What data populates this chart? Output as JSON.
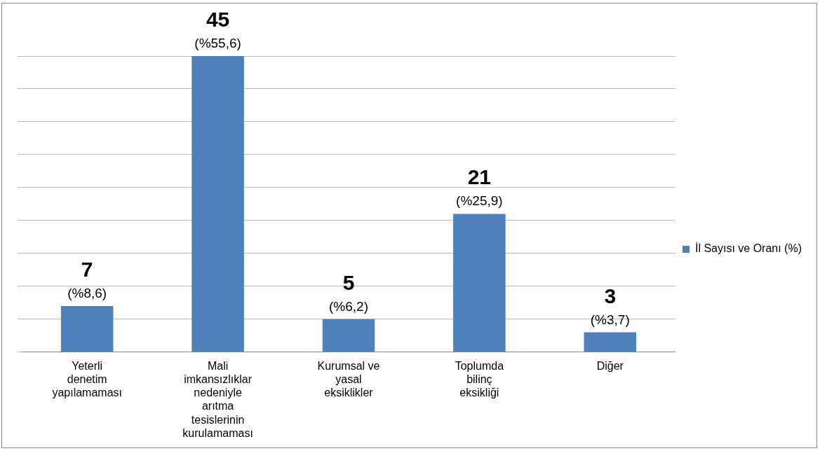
{
  "chart_data": {
    "type": "bar",
    "categories": [
      "Yeterli denetim yapılamaması",
      "Mali imkansızlıklar nedeniyle arıtma tesislerinin kurulamaması",
      "Kurumsal ve yasal eksiklikler",
      "Toplumda bilinç eksikliği",
      "Diğer"
    ],
    "series": [
      {
        "name": "İl Sayısı ve Oranı (%)",
        "color": "#4f81bd",
        "values": [
          7,
          45,
          5,
          21,
          3
        ]
      }
    ],
    "data_labels": true,
    "annotations": [
      {
        "text": "(%8,6)",
        "x": "Yeterli denetim yapılamaması",
        "y": 7
      },
      {
        "text": "(%55,6)",
        "x": "Mali imkansızlıklar nedeniyle arıtma tesislerinin kurulamaması",
        "y": 45
      },
      {
        "text": "(%6,2)",
        "x": "Kurumsal ve yasal eksiklikler",
        "y": 5
      },
      {
        "text": "(%25,9)",
        "x": "Toplumda bilinç eksikliği",
        "y": 21
      },
      {
        "text": "(%3,7)",
        "x": "Diğer",
        "y": 3
      }
    ],
    "tick_labels": "x",
    "grid": "y",
    "legend": "right"
  }
}
